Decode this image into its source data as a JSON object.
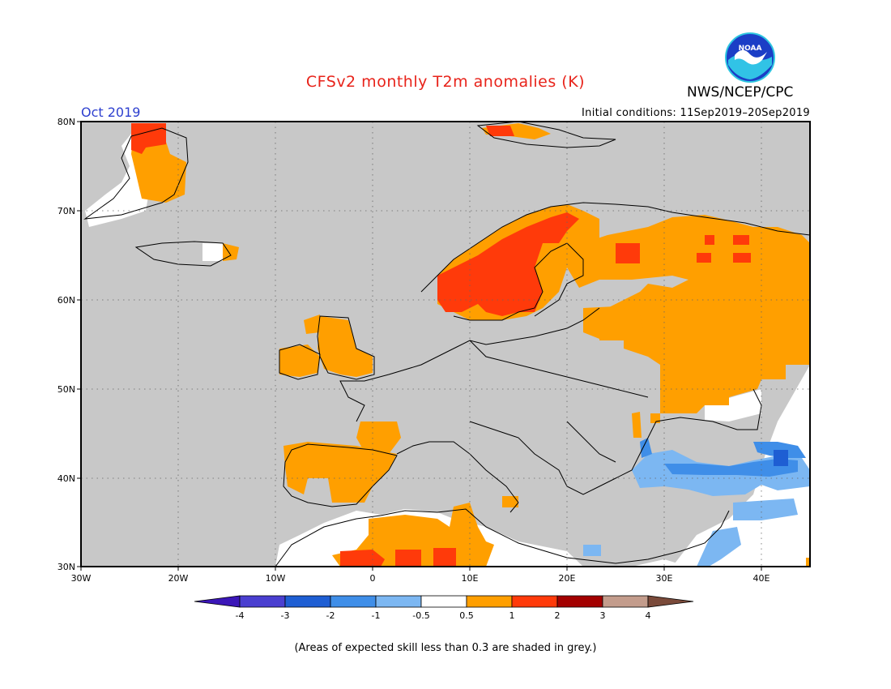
{
  "title": "CFSv2 monthly T2m anomalies (K)",
  "agency": "NWS/NCEP/CPC",
  "logo_text": "NOAA",
  "valid_month": "Oct 2019",
  "initial_conditions": "Initial conditions: 11Sep2019–20Sep2019",
  "footnote": "(Areas of expected skill less than 0.3 are shaded in grey.)",
  "map": {
    "lat_range": [
      30,
      80
    ],
    "lon_range": [
      -30,
      45
    ],
    "lat_labels": [
      "80N",
      "70N",
      "60N",
      "50N",
      "40N",
      "30N"
    ],
    "lon_labels": [
      "30W",
      "20W",
      "10W",
      "0",
      "10E",
      "20E",
      "30E",
      "40E"
    ],
    "grid": true,
    "background_color": "#c8c8c8"
  },
  "legend": {
    "labels": [
      "-4",
      "-3",
      "-2",
      "-1",
      "-0.5",
      "0.5",
      "1",
      "2",
      "3",
      "4"
    ],
    "colors": [
      "#3b16b8",
      "#4a3fd0",
      "#1e5ed3",
      "#3f8ee8",
      "#7cb7f2",
      "#ffffff",
      "#ff9f00",
      "#ff3a0a",
      "#a30000",
      "#c39c8c",
      "#7a4a3a"
    ]
  }
}
